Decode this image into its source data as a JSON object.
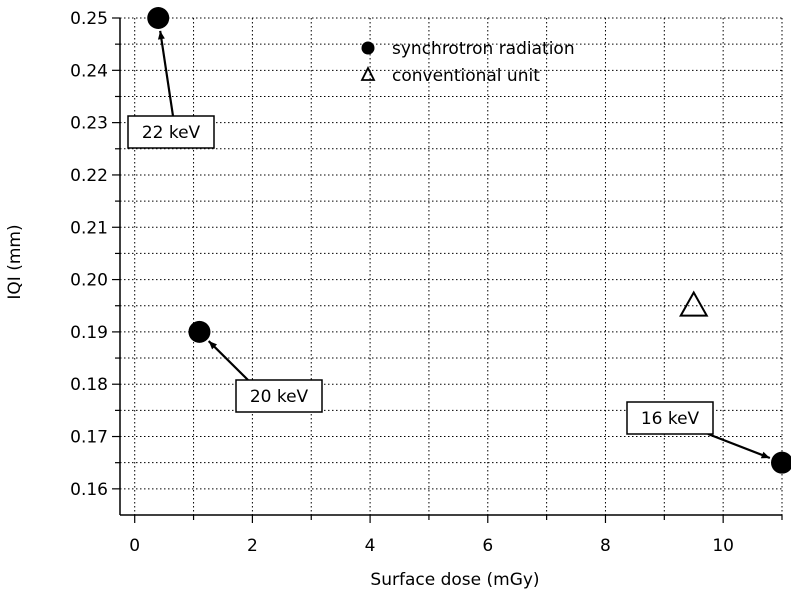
{
  "chart_data": {
    "type": "scatter",
    "title": "",
    "xlabel": "Surface dose (mGy)",
    "ylabel": "IQI (mm)",
    "xlim": [
      -0.25,
      11
    ],
    "ylim": [
      0.155,
      0.25
    ],
    "x_ticks": [
      0,
      2,
      4,
      6,
      8,
      10
    ],
    "x_tick_labels": [
      "0",
      "2",
      "4",
      "6",
      "8",
      "10"
    ],
    "y_ticks": [
      0.16,
      0.17,
      0.18,
      0.19,
      0.2,
      0.21,
      0.22,
      0.23,
      0.24,
      0.25
    ],
    "y_tick_labels": [
      "0.16",
      "0.17",
      "0.18",
      "0.19",
      "0.20",
      "0.21",
      "0.22",
      "0.23",
      "0.24",
      "0.25"
    ],
    "grid": true,
    "legend_position": "top-center",
    "series": [
      {
        "name": "synchrotron radiation",
        "marker": "filled-circle",
        "points": [
          {
            "x": 0.4,
            "y": 0.25
          },
          {
            "x": 1.1,
            "y": 0.19
          },
          {
            "x": 11.0,
            "y": 0.165
          }
        ]
      },
      {
        "name": "conventional unit",
        "marker": "open-triangle",
        "points": [
          {
            "x": 9.5,
            "y": 0.195
          }
        ]
      }
    ],
    "annotations": [
      {
        "text": "22 keV",
        "x": 0.4,
        "y": 0.25
      },
      {
        "text": "20 keV",
        "x": 1.1,
        "y": 0.19
      },
      {
        "text": "16 keV",
        "x": 11.0,
        "y": 0.165
      }
    ]
  }
}
